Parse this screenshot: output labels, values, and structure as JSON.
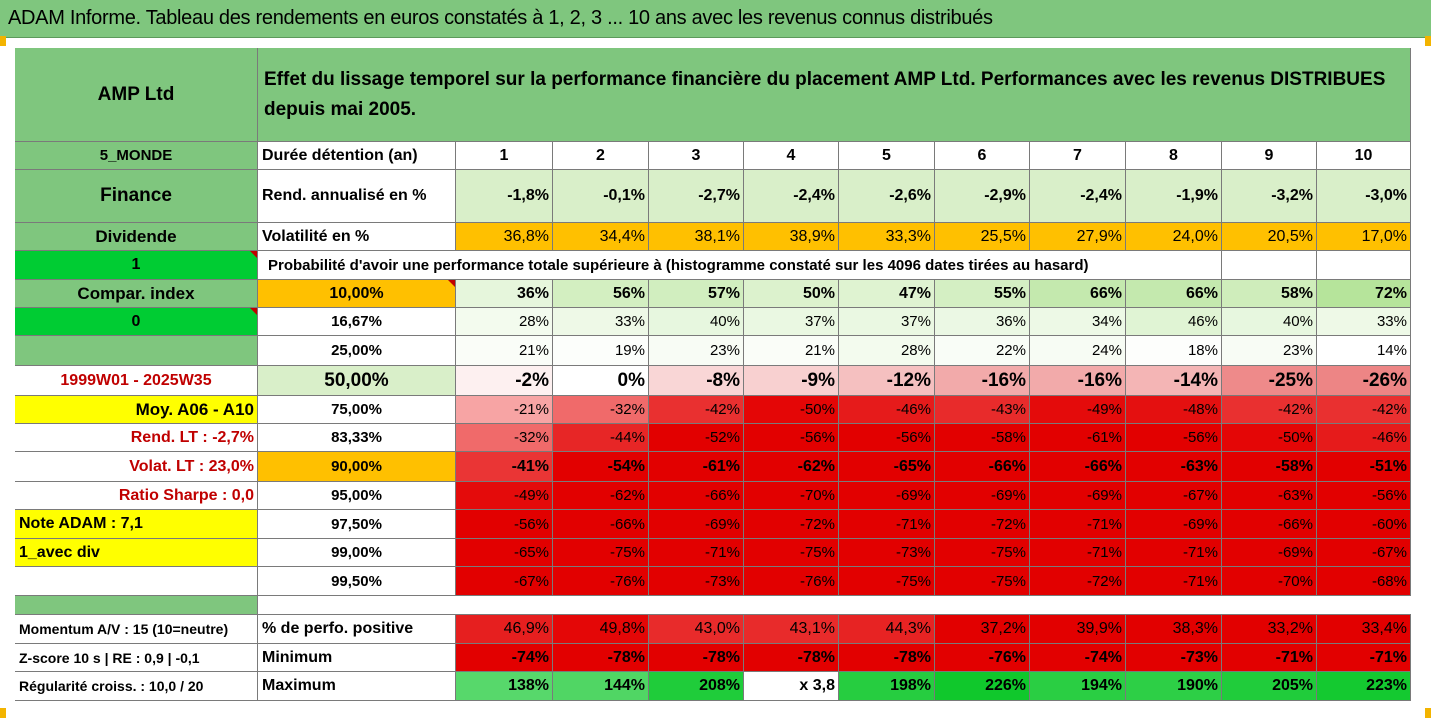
{
  "title": "ADAM Informe. Tableau des rendements en euros constatés à 1, 2, 3 ... 10 ans avec les revenus connus distribués",
  "header": {
    "company": "AMP Ltd",
    "description": "Effet du lissage temporel sur la performance financière du placement AMP Ltd. Performances avec les revenus DISTRIBUES depuis mai 2005."
  },
  "left": {
    "region": "5_MONDE",
    "sector": "Finance",
    "dividend": "Dividende",
    "div_value": "1",
    "compar": "Compar. index",
    "compar_value": "0",
    "period": "1999W01 - 2025W35",
    "moy": "Moy. A06 - A10",
    "rend_lt": "Rend. LT :   -2,7%",
    "volat_lt": "Volat. LT :   23,0%",
    "sharpe": "Ratio Sharpe :    0,0",
    "note": "Note ADAM : 7,1",
    "avec_div": "1_avec div",
    "momentum": "Momentum A/V : 15 (10=neutre)",
    "zscore": "Z-score 10 s  |  RE : 0,9  |  -0,1",
    "regularite": "Régularité croiss. : 10,0 / 20"
  },
  "row_labels": {
    "duree": "Durée détention (an)",
    "rend": "Rend. annualisé en %",
    "volat": "Volatilité en %",
    "prob_title": "Probabilité d'avoir une performance totale supérieure à (histogramme constaté sur les 4096 dates tirées au hasard)",
    "pct_pos": "% de perfo. positive",
    "minimum": "Minimum",
    "maximum": "Maximum"
  },
  "years": [
    "1",
    "2",
    "3",
    "4",
    "5",
    "6",
    "7",
    "8",
    "9",
    "10"
  ],
  "rend": [
    "-1,8%",
    "-0,1%",
    "-2,7%",
    "-2,4%",
    "-2,6%",
    "-2,9%",
    "-2,4%",
    "-1,9%",
    "-3,2%",
    "-3,0%"
  ],
  "volat": [
    "36,8%",
    "34,4%",
    "38,1%",
    "38,9%",
    "33,3%",
    "25,5%",
    "27,9%",
    "24,0%",
    "20,5%",
    "17,0%"
  ],
  "probs": [
    {
      "label": "10,00%",
      "values": [
        "36%",
        "56%",
        "57%",
        "50%",
        "47%",
        "55%",
        "66%",
        "66%",
        "58%",
        "72%"
      ],
      "colors": [
        "#e6f6dc",
        "#d3efc1",
        "#d1eebf",
        "#dcf2cd",
        "#dff3d1",
        "#d4efc3",
        "#c4e9ae",
        "#c4e9ae",
        "#cfedbb",
        "#b6e49b"
      ]
    },
    {
      "label": "16,67%",
      "values": [
        "28%",
        "33%",
        "40%",
        "37%",
        "37%",
        "36%",
        "34%",
        "46%",
        "40%",
        "33%"
      ],
      "colors": [
        "#f3fbee",
        "#eef9e7",
        "#e7f7df",
        "#eaf8e2",
        "#eaf8e2",
        "#ebf8e4",
        "#edf9e6",
        "#e0f4d4",
        "#e7f7df",
        "#eef9e7"
      ]
    },
    {
      "label": "25,00%",
      "values": [
        "21%",
        "19%",
        "23%",
        "21%",
        "28%",
        "22%",
        "24%",
        "18%",
        "23%",
        "14%"
      ],
      "colors": [
        "#fafdf8",
        "#fcfefb",
        "#f8fcf5",
        "#fafdf8",
        "#f3fbee",
        "#f9fdf7",
        "#f7fcf4",
        "#fdfefc",
        "#f8fcf5",
        "#ffffff"
      ]
    },
    {
      "label": "50,00%",
      "values": [
        "-2%",
        "0%",
        "-8%",
        "-9%",
        "-12%",
        "-16%",
        "-16%",
        "-14%",
        "-25%",
        "-26%"
      ],
      "colors": [
        "#fdf0f0",
        "#ffffff",
        "#f9d6d6",
        "#f8d0d0",
        "#f5c0c0",
        "#f2aaaa",
        "#f2aaaa",
        "#f4b5b5",
        "#ee8a8a",
        "#ed8585"
      ]
    },
    {
      "label": "75,00%",
      "values": [
        "-21%",
        "-32%",
        "-42%",
        "-50%",
        "-46%",
        "-43%",
        "-49%",
        "-48%",
        "-42%",
        "-42%"
      ],
      "colors": [
        "#f7a4a4",
        "#f06a6a",
        "#e93030",
        "#e40606",
        "#e61b1b",
        "#e82b2b",
        "#e40b0b",
        "#e41010",
        "#e93030",
        "#e93030"
      ]
    },
    {
      "label": "83,33%",
      "values": [
        "-32%",
        "-44%",
        "-52%",
        "-56%",
        "-56%",
        "-58%",
        "-61%",
        "-56%",
        "-50%",
        "-46%"
      ],
      "colors": [
        "#f06a6a",
        "#e72626",
        "#e20000",
        "#e20000",
        "#e20000",
        "#e20000",
        "#e20000",
        "#e20000",
        "#e40606",
        "#e61b1b"
      ]
    },
    {
      "label": "90,00%",
      "values": [
        "-41%",
        "-54%",
        "-61%",
        "-62%",
        "-65%",
        "-66%",
        "-66%",
        "-63%",
        "-58%",
        "-51%"
      ],
      "colors": [
        "#ea3535",
        "#e20000",
        "#e20000",
        "#e20000",
        "#e20000",
        "#e20000",
        "#e20000",
        "#e20000",
        "#e20000",
        "#e20000"
      ]
    },
    {
      "label": "95,00%",
      "values": [
        "-49%",
        "-62%",
        "-66%",
        "-70%",
        "-69%",
        "-69%",
        "-69%",
        "-67%",
        "-63%",
        "-56%"
      ],
      "colors": [
        "#e40b0b",
        "#e20000",
        "#e20000",
        "#e20000",
        "#e20000",
        "#e20000",
        "#e20000",
        "#e20000",
        "#e20000",
        "#e20000"
      ]
    },
    {
      "label": "97,50%",
      "values": [
        "-56%",
        "-66%",
        "-69%",
        "-72%",
        "-71%",
        "-72%",
        "-71%",
        "-69%",
        "-66%",
        "-60%"
      ],
      "colors": [
        "#e20000",
        "#e20000",
        "#e20000",
        "#e20000",
        "#e20000",
        "#e20000",
        "#e20000",
        "#e20000",
        "#e20000",
        "#e20000"
      ]
    },
    {
      "label": "99,00%",
      "values": [
        "-65%",
        "-75%",
        "-71%",
        "-75%",
        "-73%",
        "-75%",
        "-71%",
        "-71%",
        "-69%",
        "-67%"
      ],
      "colors": [
        "#e20000",
        "#e20000",
        "#e20000",
        "#e20000",
        "#e20000",
        "#e20000",
        "#e20000",
        "#e20000",
        "#e20000",
        "#e20000"
      ]
    },
    {
      "label": "99,50%",
      "values": [
        "-67%",
        "-76%",
        "-73%",
        "-76%",
        "-75%",
        "-75%",
        "-72%",
        "-71%",
        "-70%",
        "-68%"
      ],
      "colors": [
        "#e20000",
        "#e20000",
        "#e20000",
        "#e20000",
        "#e20000",
        "#e20000",
        "#e20000",
        "#e20000",
        "#e20000",
        "#e20000"
      ]
    }
  ],
  "pct_pos": [
    "46,9%",
    "49,8%",
    "43,0%",
    "43,1%",
    "44,3%",
    "37,2%",
    "39,9%",
    "38,3%",
    "33,2%",
    "33,4%"
  ],
  "pct_pos_colors": [
    "#e61f1f",
    "#e40707",
    "#e82b2b",
    "#e82b2b",
    "#e72323",
    "#e20000",
    "#e20000",
    "#e20000",
    "#e20000",
    "#e20000"
  ],
  "minimum": [
    "-74%",
    "-78%",
    "-78%",
    "-78%",
    "-78%",
    "-76%",
    "-74%",
    "-73%",
    "-71%",
    "-71%"
  ],
  "maximum": [
    "138%",
    "144%",
    "208%",
    "x 3,8",
    "198%",
    "226%",
    "194%",
    "190%",
    "205%",
    "223%"
  ],
  "maximum_colors": [
    "#57d86b",
    "#50d664",
    "#1fcc3a",
    "#ffffff",
    "#26cd40",
    "#10c82c",
    "#2ace43",
    "#2dcf46",
    "#20cc3b",
    "#14c930"
  ],
  "colors": {
    "green_header": "#7fc67e",
    "light_green": "#d9efc9",
    "orange": "#ffc000",
    "bright_green": "#00cc33",
    "yellow": "#ffff00",
    "red": "#e20000",
    "dark_red_text": "#c00000"
  }
}
